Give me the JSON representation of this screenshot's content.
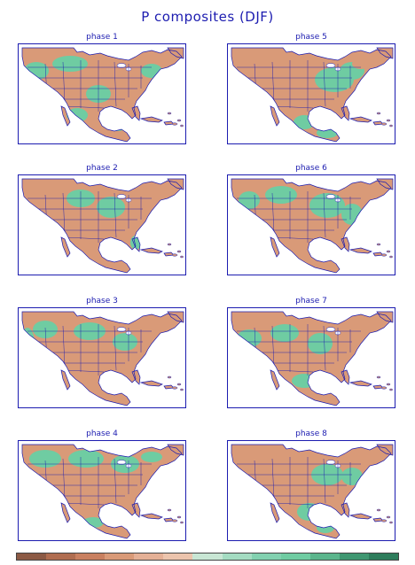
{
  "title": "P composites (DJF)",
  "colors": {
    "frame": "#1c1cb0",
    "dry": "#d99a78",
    "wet": "#6fcca2",
    "ocean": "#ffffff"
  },
  "panels": [
    {
      "id": "p1",
      "title": "phase 1",
      "pattern": "wet-northwest-coast-dry-interior"
    },
    {
      "id": "p5",
      "title": "phase 5",
      "pattern": "wet-east-dry-southwest"
    },
    {
      "id": "p2",
      "title": "phase 2",
      "pattern": "dry-west-mixed-east"
    },
    {
      "id": "p6",
      "title": "phase 6",
      "pattern": "wet-east-dry-southeast"
    },
    {
      "id": "p3",
      "title": "phase 3",
      "pattern": "wet-west-coast-dry-south"
    },
    {
      "id": "p7",
      "title": "phase 7",
      "pattern": "mixed-dry-southeast"
    },
    {
      "id": "p4",
      "title": "phase 4",
      "pattern": "wet-north-dry-south"
    },
    {
      "id": "p8",
      "title": "phase 8",
      "pattern": "dry-west-wet-east"
    }
  ],
  "colorbar": {
    "colors": [
      "#8c5a45",
      "#b06d50",
      "#c98060",
      "#d99a78",
      "#e4b096",
      "#ecc4ad",
      "#c8e6d4",
      "#a4dcc2",
      "#82d1b0",
      "#6fcca2",
      "#5bb58c",
      "#3f9771",
      "#2e7d5c"
    ]
  }
}
